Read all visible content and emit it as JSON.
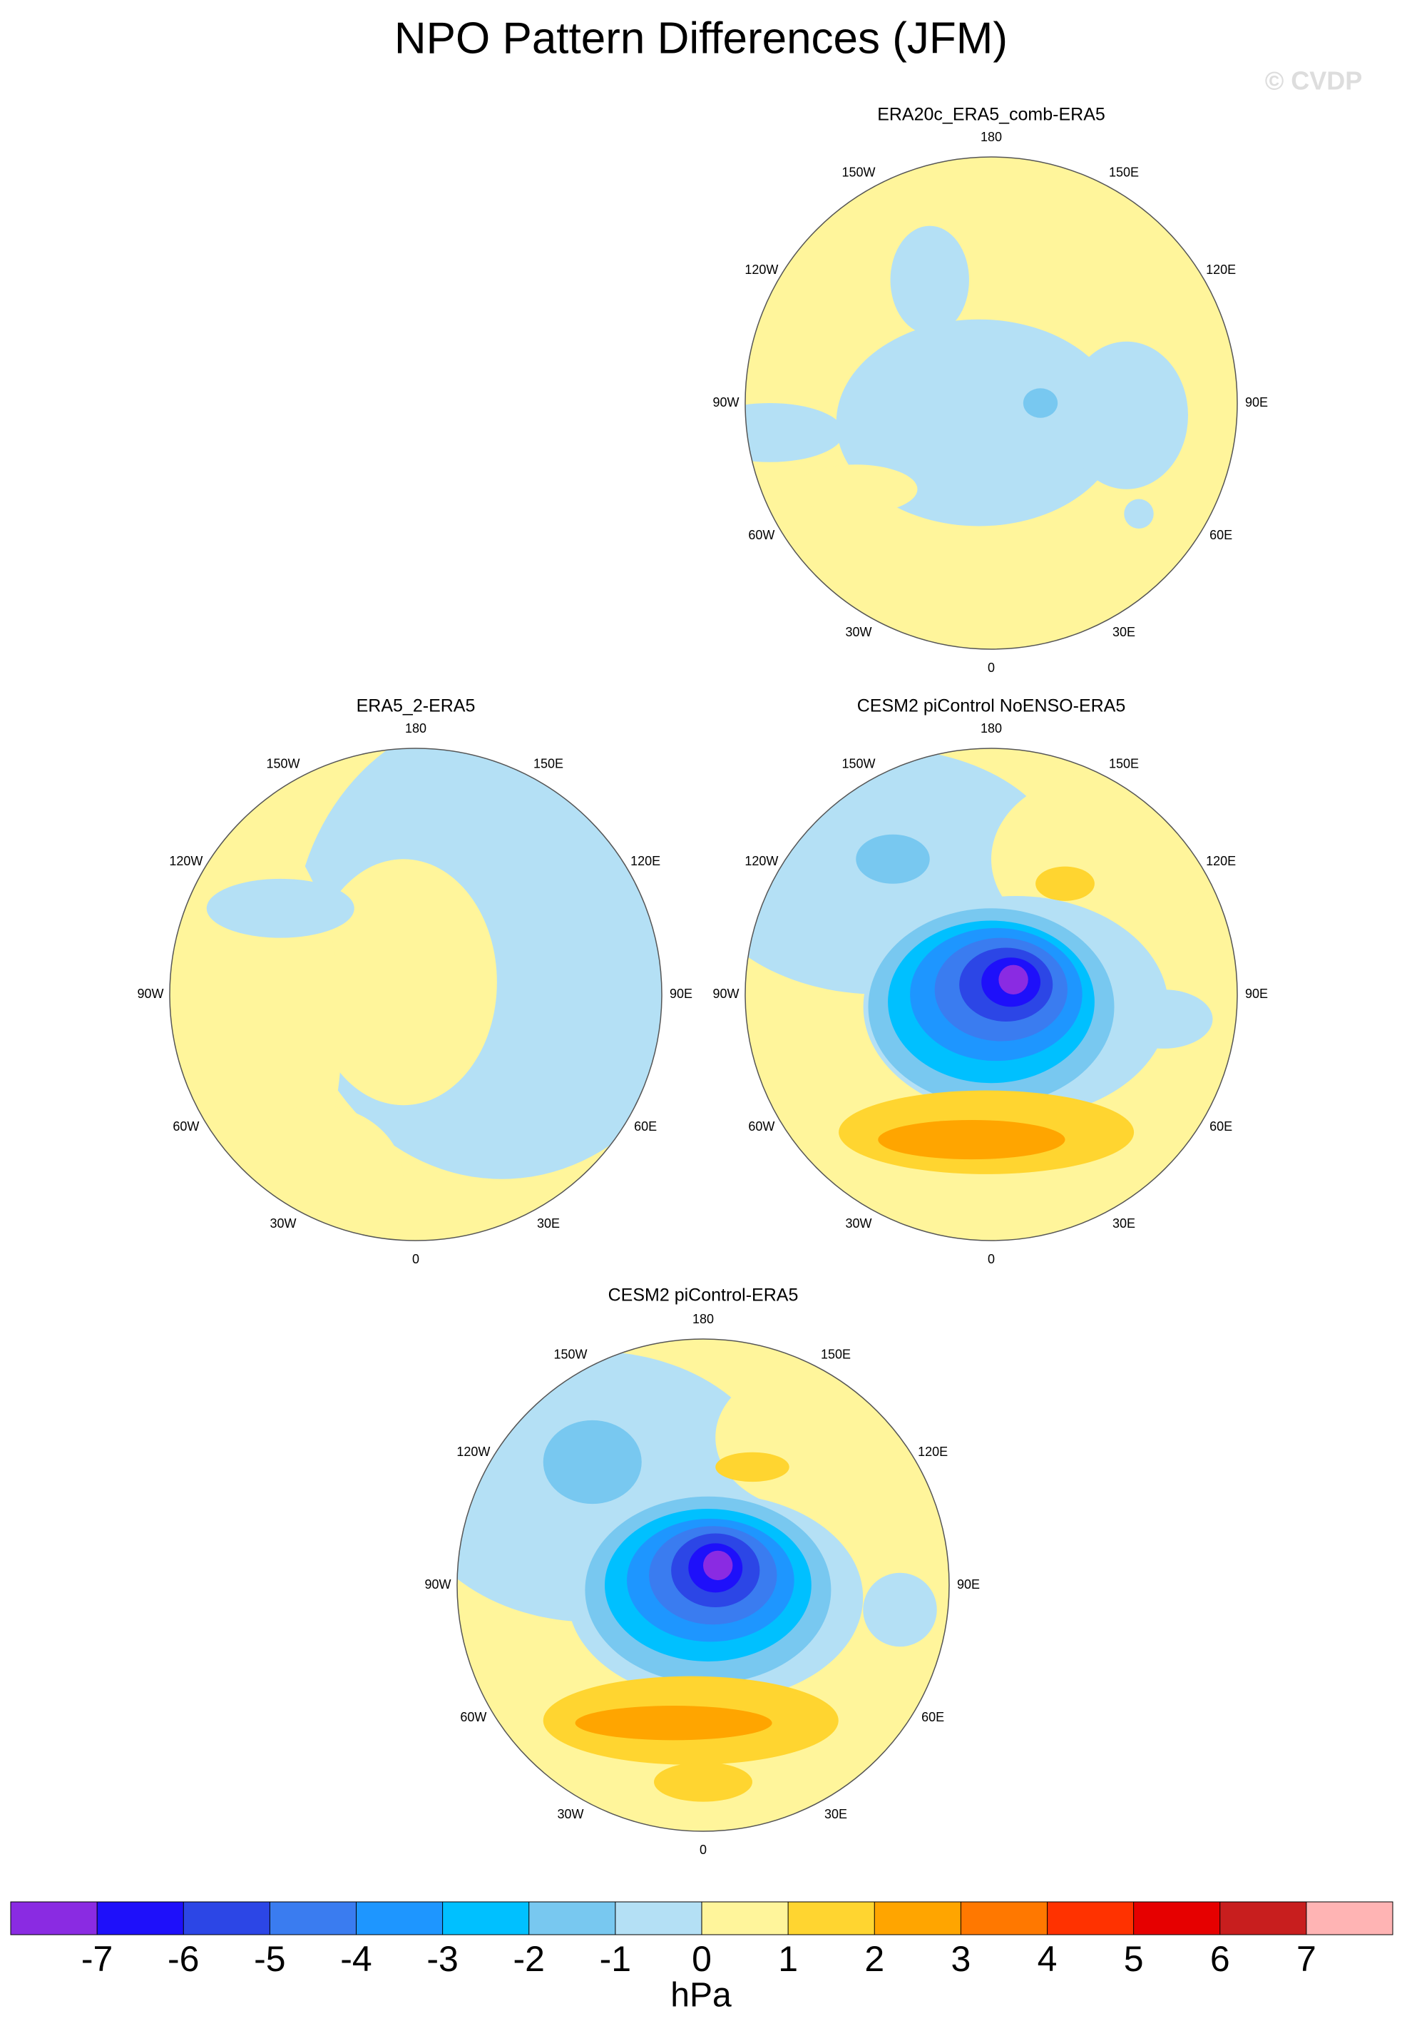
{
  "title": "NPO Pattern Differences (JFM)",
  "watermark": "© CVDP",
  "panels": [
    {
      "title": "ERA20c_ERA5_comb-ERA5"
    },
    {
      "title": "ERA5_2-ERA5"
    },
    {
      "title": "CESM2 piControl NoENSO-ERA5"
    },
    {
      "title": "CESM2 piControl-ERA5"
    }
  ],
  "longitude_labels": [
    "0",
    "30E",
    "60E",
    "90E",
    "120E",
    "150E",
    "180",
    "150W",
    "120W",
    "90W",
    "60W",
    "30W"
  ],
  "colorbar": {
    "levels": [
      -7,
      -6,
      -5,
      -4,
      -3,
      -2,
      -1,
      0,
      1,
      2,
      3,
      4,
      5,
      6,
      7
    ],
    "colors": [
      "#8a2be2",
      "#1e10fa",
      "#2c46e6",
      "#3a7cf0",
      "#1e96ff",
      "#00c0ff",
      "#78c8f0",
      "#b4e0f5",
      "#fff59b",
      "#ffd530",
      "#ffa500",
      "#ff7800",
      "#ff3200",
      "#e60000",
      "#c81e1e",
      "#ffb4b4"
    ],
    "unit": "hPa"
  }
}
